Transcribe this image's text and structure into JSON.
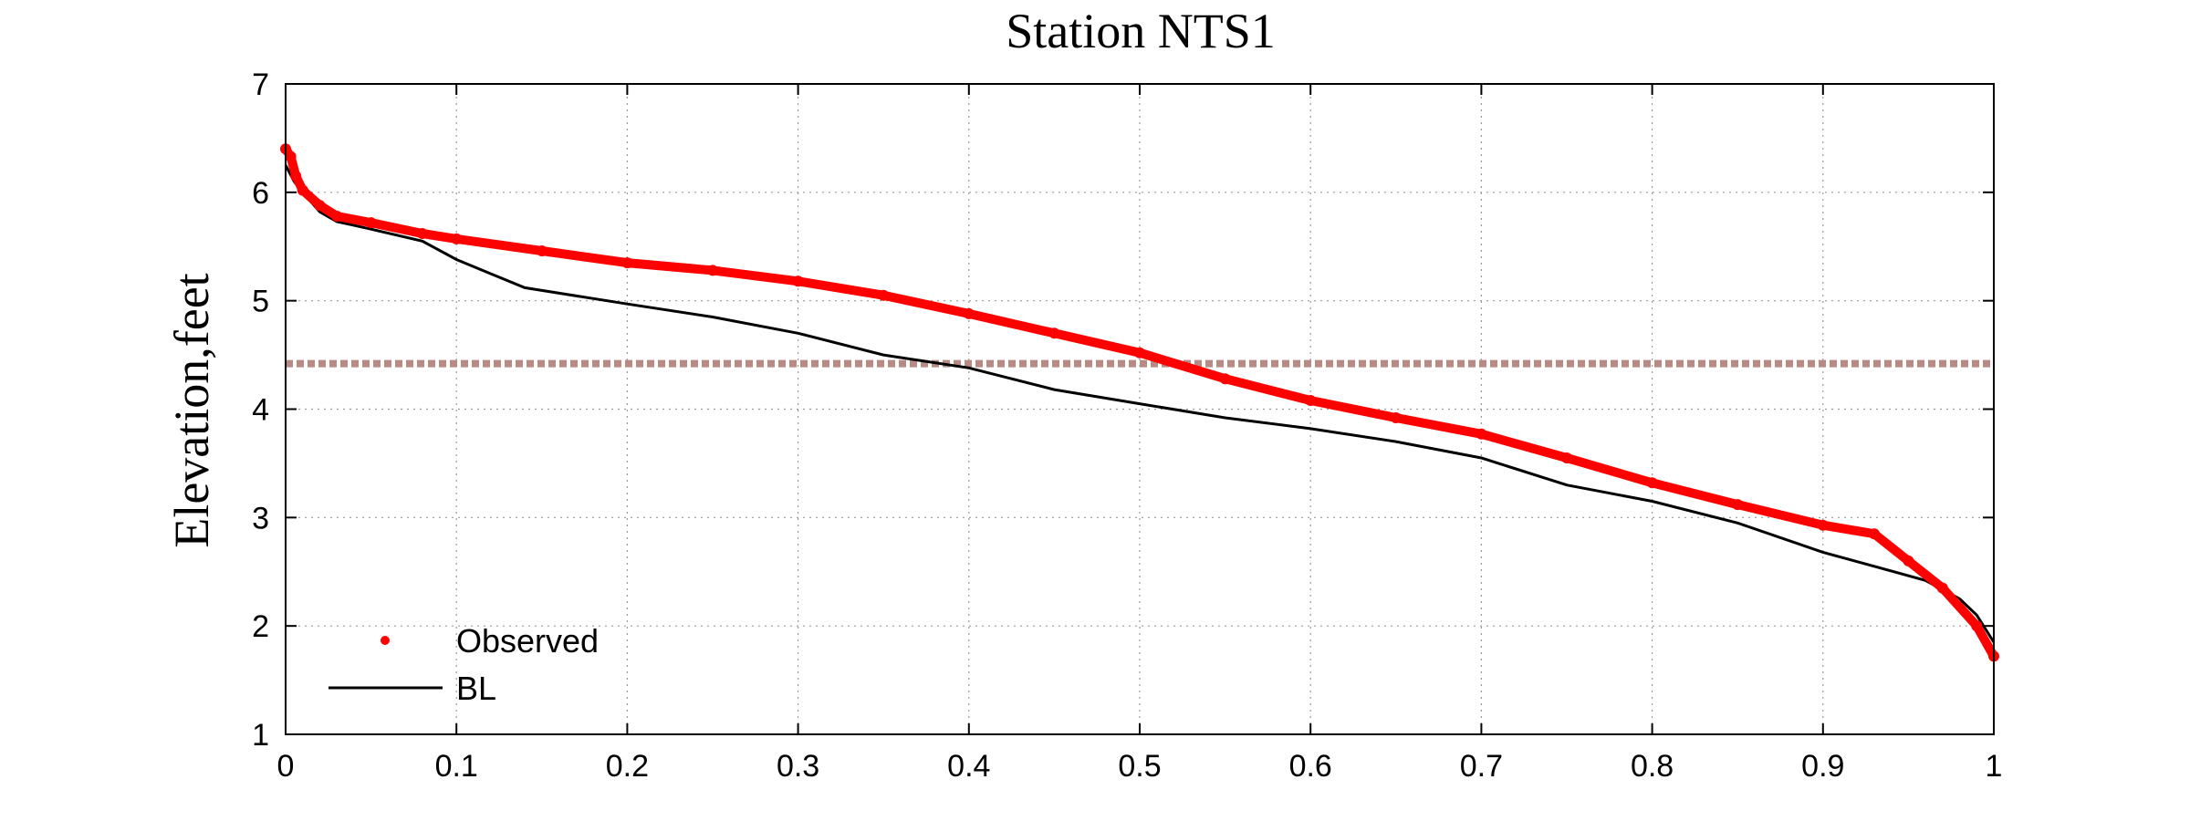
{
  "chart_data": {
    "type": "line",
    "title": "Station NTS1",
    "xlabel": "",
    "ylabel": "Elevation,feet",
    "xlim": [
      0,
      1
    ],
    "ylim": [
      1,
      7
    ],
    "xticks": [
      "0",
      "0.1",
      "0.2",
      "0.3",
      "0.4",
      "0.5",
      "0.6",
      "0.7",
      "0.8",
      "0.9",
      "1"
    ],
    "yticks": [
      "1",
      "2",
      "3",
      "4",
      "5",
      "6",
      "7"
    ],
    "grid": true,
    "legend_position": "bottom-left",
    "reference_line": {
      "y": 4.42,
      "color": "#b88a84",
      "style": "dashed"
    },
    "series": [
      {
        "name": "Observed",
        "marker": "dot",
        "color": "#ff0000",
        "x": [
          0,
          0.003,
          0.006,
          0.01,
          0.02,
          0.03,
          0.05,
          0.08,
          0.1,
          0.15,
          0.2,
          0.25,
          0.3,
          0.35,
          0.4,
          0.45,
          0.5,
          0.55,
          0.6,
          0.65,
          0.7,
          0.75,
          0.8,
          0.85,
          0.9,
          0.93,
          0.95,
          0.97,
          0.99,
          1.0
        ],
        "y": [
          6.4,
          6.33,
          6.15,
          6.02,
          5.88,
          5.78,
          5.72,
          5.62,
          5.57,
          5.46,
          5.35,
          5.28,
          5.18,
          5.05,
          4.88,
          4.7,
          4.52,
          4.28,
          4.08,
          3.92,
          3.77,
          3.55,
          3.32,
          3.12,
          2.93,
          2.85,
          2.6,
          2.35,
          2.0,
          1.72
        ]
      },
      {
        "name": "BL",
        "marker": "line",
        "color": "#000000",
        "x": [
          0,
          0.005,
          0.01,
          0.02,
          0.03,
          0.05,
          0.08,
          0.1,
          0.12,
          0.14,
          0.2,
          0.25,
          0.3,
          0.35,
          0.4,
          0.45,
          0.5,
          0.55,
          0.6,
          0.65,
          0.7,
          0.75,
          0.8,
          0.85,
          0.9,
          0.93,
          0.96,
          0.98,
          0.99,
          1.0
        ],
        "y": [
          6.25,
          6.1,
          6.0,
          5.82,
          5.73,
          5.66,
          5.55,
          5.38,
          5.25,
          5.12,
          4.97,
          4.85,
          4.7,
          4.5,
          4.38,
          4.18,
          4.05,
          3.92,
          3.82,
          3.7,
          3.55,
          3.3,
          3.15,
          2.95,
          2.68,
          2.55,
          2.42,
          2.25,
          2.1,
          1.85
        ]
      }
    ]
  }
}
